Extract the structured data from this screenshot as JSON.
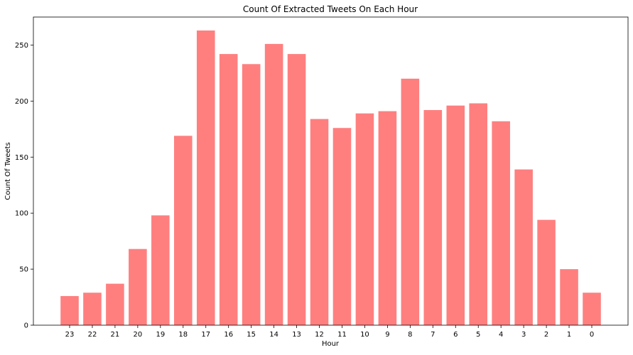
{
  "chart_data": {
    "type": "bar",
    "title": "Count Of Extracted Tweets On Each Hour",
    "xlabel": "Hour",
    "ylabel": "Count Of Tweets",
    "categories": [
      "23",
      "22",
      "21",
      "20",
      "19",
      "18",
      "17",
      "16",
      "15",
      "14",
      "13",
      "12",
      "11",
      "10",
      "9",
      "8",
      "7",
      "6",
      "5",
      "4",
      "3",
      "2",
      "1",
      "0"
    ],
    "values": [
      26,
      29,
      37,
      68,
      98,
      169,
      263,
      242,
      233,
      251,
      242,
      184,
      176,
      189,
      191,
      220,
      192,
      196,
      198,
      182,
      139,
      94,
      50,
      29
    ],
    "ylim": [
      0,
      275
    ],
    "yticks": [
      0,
      50,
      100,
      150,
      200,
      250
    ],
    "grid": false,
    "bar_color": "#ff7f7f"
  }
}
